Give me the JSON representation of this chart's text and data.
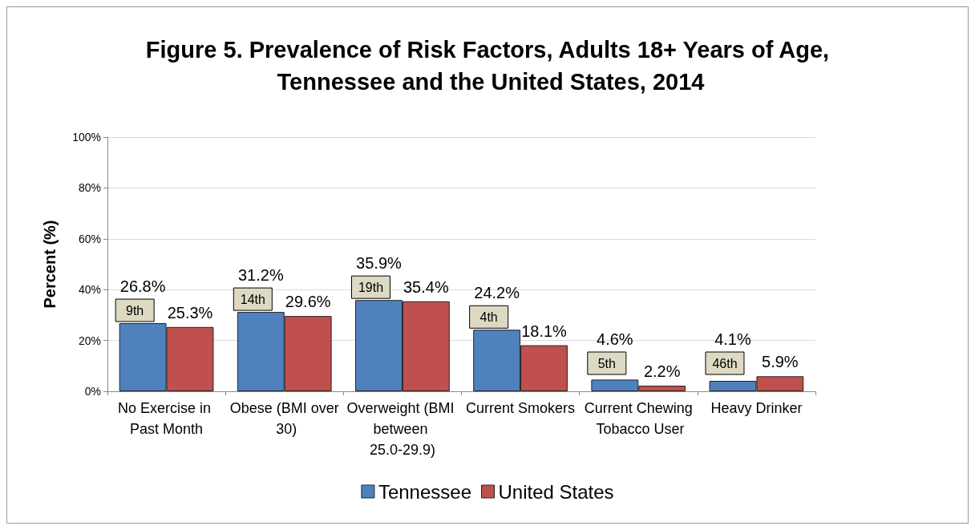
{
  "chart_data": {
    "type": "bar",
    "title": "Figure 5. Prevalence of Risk Factors, Adults 18+ Years of Age, Tennessee and the United States, 2014",
    "ylabel": "Percent (%)",
    "categories": [
      "No Exercise in Past Month",
      "Obese (BMI over 30)",
      "Overweight (BMI between 25.0-29.9)",
      "Current Smokers",
      "Current Chewing Tobacco User",
      "Heavy Drinker"
    ],
    "series": [
      {
        "name": "Tennessee",
        "color": "#4f81bd",
        "values": [
          26.8,
          31.2,
          35.9,
          24.2,
          4.6,
          4.1
        ],
        "value_labels": [
          "26.8%",
          "31.2%",
          "35.9%",
          "24.2%",
          "4.6%",
          "4.1%"
        ]
      },
      {
        "name": "United States",
        "color": "#c0504d",
        "values": [
          25.3,
          29.6,
          35.4,
          18.1,
          2.2,
          5.9
        ],
        "value_labels": [
          "25.3%",
          "29.6%",
          "35.4%",
          "18.1%",
          "2.2%",
          "5.9%"
        ]
      }
    ],
    "ylim": [
      0,
      100
    ],
    "yticks": [
      {
        "value": 0,
        "label": "0%"
      },
      {
        "value": 20,
        "label": "20%"
      },
      {
        "value": 40,
        "label": "40%"
      },
      {
        "value": 60,
        "label": "60%"
      },
      {
        "value": 80,
        "label": "80%"
      },
      {
        "value": 100,
        "label": "100%"
      }
    ],
    "annotations": [
      "9th",
      "14th",
      "19th",
      "4th",
      "5th",
      "46th"
    ],
    "grid": "y",
    "legend": "bottom"
  }
}
